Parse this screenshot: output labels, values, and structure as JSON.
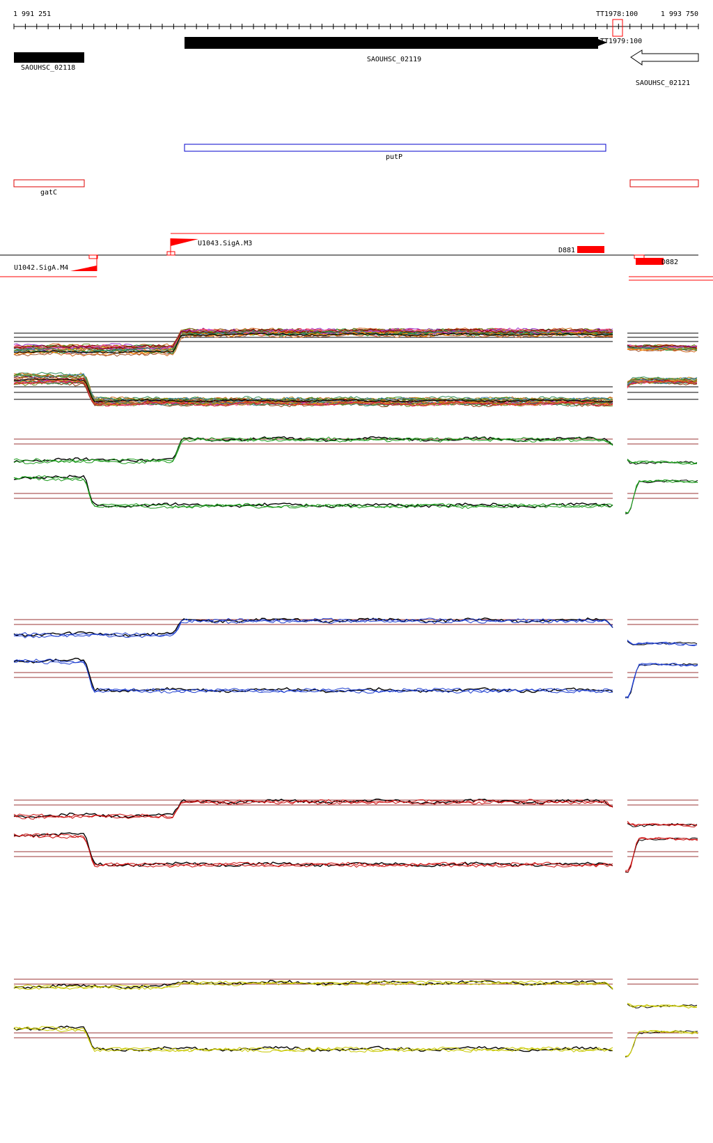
{
  "coords": {
    "start": "1 991 251",
    "end": "1 993 750"
  },
  "terminators": [
    {
      "label": "TT1978:100"
    },
    {
      "label": "TT1979:100"
    }
  ],
  "genes": [
    {
      "name": "SAOUHSC_02118",
      "strand": "+",
      "style": "filled"
    },
    {
      "name": "SAOUHSC_02119",
      "strand": "+",
      "style": "filled"
    },
    {
      "name": "SAOUHSC_02121",
      "strand": "-",
      "style": "outline"
    }
  ],
  "gene_names": [
    {
      "name": "putP",
      "color": "#0000cc"
    },
    {
      "name": "gatC",
      "color": "#dd0000"
    }
  ],
  "promoters": [
    {
      "name": "U1043.SigA.M3",
      "strand": "+"
    },
    {
      "name": "U1042.SigA.M4",
      "strand": "-"
    }
  ],
  "regions": [
    {
      "name": "D881",
      "color": "#ff0000"
    },
    {
      "name": "D882",
      "color": "#ff0000"
    }
  ],
  "colors": {
    "track_green": "#1a9a1a",
    "track_blue": "#1f3fd0",
    "track_red": "#cc1111",
    "track_yellow": "#c8c800",
    "threshold": "#993333",
    "feature_red": "#ff0000"
  }
}
